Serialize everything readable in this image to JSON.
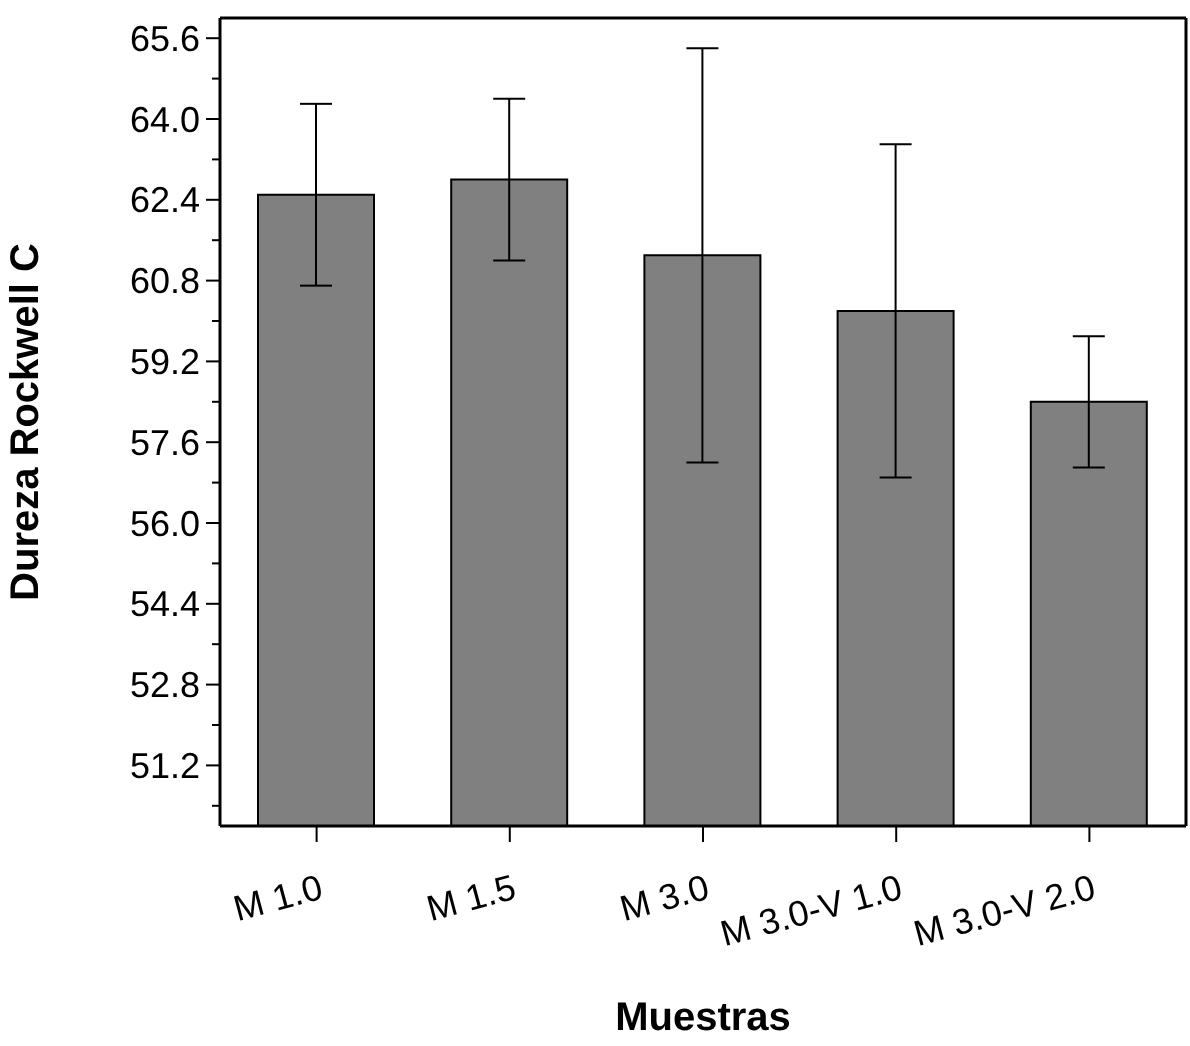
{
  "chart_data": {
    "type": "bar",
    "xlabel": "Muestras",
    "ylabel": "Dureza Rockwell C",
    "categories": [
      "M 1.0",
      "M 1.5",
      "M 3.0",
      "M 3.0-V 1.0",
      "M 3.0-V 2.0"
    ],
    "values": [
      62.5,
      62.8,
      61.3,
      60.2,
      58.4
    ],
    "errors": [
      1.8,
      1.6,
      4.1,
      3.3,
      1.3
    ],
    "color": "#808080",
    "ylim": [
      50,
      66
    ],
    "yticks": [
      {
        "value": 50.4,
        "label": null
      },
      51.2,
      {
        "value": 52.0,
        "label": null
      },
      52.8,
      {
        "value": 53.6,
        "label": null
      },
      54.4,
      {
        "value": 55.2,
        "label": null
      },
      {
        "value": 56,
        "label": "56.0"
      },
      {
        "value": 56.8,
        "label": null
      },
      57.6,
      {
        "value": 58.4,
        "label": null
      },
      59.2,
      {
        "value": 60.0,
        "label": null
      },
      60.8,
      {
        "value": 61.6,
        "label": null
      },
      62.4,
      {
        "value": 63.2,
        "label": null
      },
      {
        "value": 64,
        "label": "64.0"
      },
      {
        "value": 64.8,
        "label": null
      },
      65.6
    ],
    "grid": false,
    "legend": false
  }
}
